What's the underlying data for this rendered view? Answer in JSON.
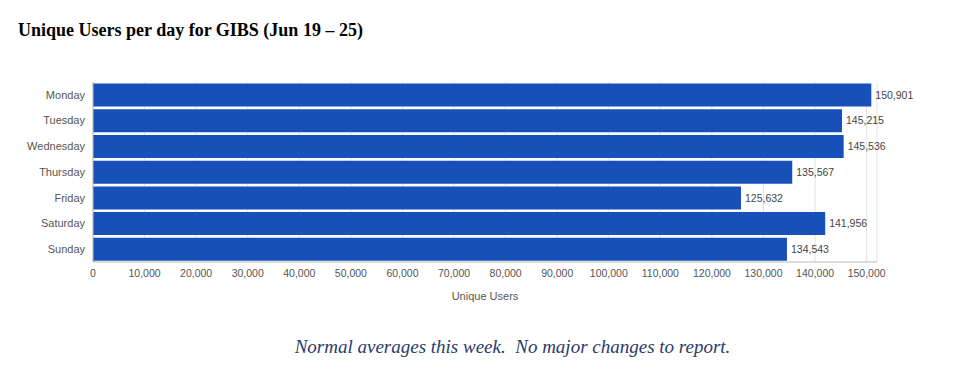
{
  "chart_data": {
    "type": "bar",
    "title": "Unique Users per day for GIBS (Jun 19 – 25)",
    "orientation": "horizontal",
    "categories": [
      "Monday",
      "Tuesday",
      "Wednesday",
      "Thursday",
      "Friday",
      "Saturday",
      "Sunday"
    ],
    "values": [
      150901,
      145215,
      145536,
      135567,
      125632,
      141956,
      134543
    ],
    "value_labels": [
      "150,901",
      "145,215",
      "145,536",
      "135,567",
      "125,632",
      "141,956",
      "134,543"
    ],
    "data_labels": true,
    "color": "#1750b8",
    "xlabel": "Unique Users",
    "xlim": [
      0,
      152000
    ],
    "xticks": [
      0,
      {
        "value": 10000,
        "label": "10,000"
      },
      {
        "value": 20000,
        "label": "20,000"
      },
      {
        "value": 30000,
        "label": "30,000"
      },
      {
        "value": 40000,
        "label": "40,000"
      },
      {
        "value": 50000,
        "label": "50,000"
      },
      {
        "value": 60000,
        "label": "60,000"
      },
      {
        "value": 70000,
        "label": "70,000"
      },
      {
        "value": 80000,
        "label": "80,000"
      },
      {
        "value": 90000,
        "label": "90,000"
      },
      {
        "value": 100000,
        "label": "100,000"
      },
      {
        "value": 110000,
        "label": "110,000"
      },
      {
        "value": 120000,
        "label": "120,000"
      },
      {
        "value": 130000,
        "label": "130,000"
      },
      {
        "value": 140000,
        "label": "140,000"
      },
      {
        "value": 150000,
        "label": "150,000"
      }
    ],
    "grid": true,
    "annotation": "Normal averages this week.  No major changes to report."
  }
}
